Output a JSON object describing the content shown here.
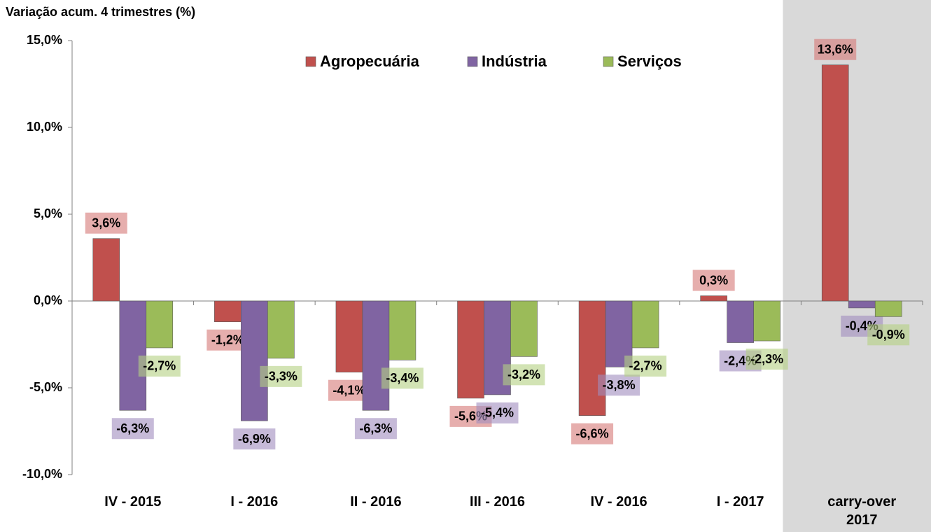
{
  "chart_data": {
    "type": "bar",
    "y_axis_title": "Variação acum. 4 trimestres (%)",
    "categories": [
      "IV - 2015",
      "I - 2016",
      "II - 2016",
      "III - 2016",
      "IV - 2016",
      "I - 2017",
      "carry-over 2017"
    ],
    "series": [
      {
        "name": "Agropecuária",
        "color": "#c0504d",
        "values": [
          3.6,
          -1.2,
          -4.1,
          -5.6,
          -6.6,
          0.3,
          13.6
        ],
        "value_labels": [
          "3,6%",
          "-1,2%",
          "-4,1%",
          "-5,6%",
          "-6,6%",
          "0,3%",
          "13,6%"
        ]
      },
      {
        "name": "Indústria",
        "color": "#8064a2",
        "values": [
          -6.3,
          -6.9,
          -6.3,
          -5.4,
          -3.8,
          -2.4,
          -0.4
        ],
        "value_labels": [
          "-6,3%",
          "-6,9%",
          "-6,3%",
          "-5,4%",
          "-3,8%",
          "-2,4%",
          "-0,4%"
        ]
      },
      {
        "name": "Serviços",
        "color": "#9bbb59",
        "values": [
          -2.7,
          -3.3,
          -3.4,
          -3.2,
          -2.7,
          -2.3,
          -0.9
        ],
        "value_labels": [
          "-2,7%",
          "-3,3%",
          "-3,4%",
          "-3,2%",
          "-2,7%",
          "-2,3%",
          "-0,9%"
        ]
      }
    ],
    "ylim": [
      -10,
      15
    ],
    "yticks": [
      {
        "value": -10,
        "label": "-10,0%"
      },
      {
        "value": -5,
        "label": "-5,0%"
      },
      {
        "value": 0,
        "label": "0,0%"
      },
      {
        "value": 5,
        "label": "5,0%"
      },
      {
        "value": 10,
        "label": "10,0%"
      },
      {
        "value": 15,
        "label": "15,0%"
      }
    ],
    "legend": "top",
    "grid": false
  }
}
